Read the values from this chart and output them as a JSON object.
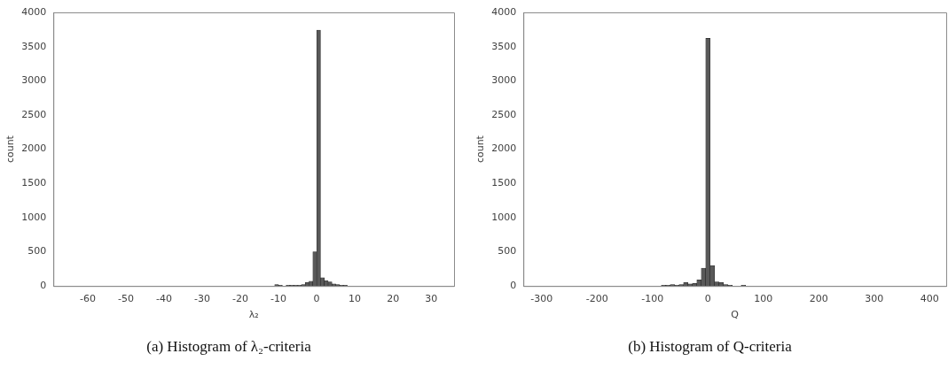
{
  "chart_data": [
    {
      "type": "histogram",
      "title": "(a) Histogram of λ₂-criteria",
      "xlabel": "λ₂",
      "ylabel": "count",
      "color": "#595959",
      "bins": [
        -64,
        -63,
        -62,
        -61,
        -60,
        -59,
        -58,
        -57,
        -56,
        -55,
        -54,
        -53,
        -52,
        -51,
        -50,
        -49,
        -48,
        -47,
        -46,
        -45,
        -44,
        -43,
        -42,
        -41,
        -40,
        -39,
        -38,
        -37,
        -36,
        -35,
        -34,
        -33,
        -32,
        -31,
        -30,
        -29,
        -28,
        -27,
        -26,
        -25,
        -24,
        -23,
        -22,
        -21,
        -20,
        -19,
        -18,
        -17,
        -16,
        -15,
        -14,
        -13,
        -12,
        -11,
        -10,
        -9,
        -8,
        -7,
        -6,
        -5,
        -4,
        -3,
        -2,
        -1,
        0,
        1,
        2,
        3,
        4,
        5,
        6,
        7,
        8,
        9,
        10,
        11,
        12,
        13,
        14,
        15,
        16,
        17,
        18,
        19,
        20,
        21,
        22,
        23,
        24,
        25,
        26,
        27,
        28,
        29,
        30,
        31,
        32
      ],
      "values": [
        0,
        0,
        0,
        0,
        0,
        0,
        0,
        0,
        0,
        0,
        0,
        0,
        0,
        0,
        0,
        0,
        0,
        0,
        0,
        0,
        0,
        0,
        0,
        0,
        0,
        0,
        0,
        0,
        0,
        0,
        0,
        0,
        0,
        0,
        0,
        0,
        0,
        0,
        0,
        0,
        0,
        0,
        0,
        0,
        0,
        0,
        0,
        0,
        0,
        0,
        0,
        0,
        0,
        20,
        10,
        0,
        10,
        10,
        10,
        10,
        20,
        50,
        70,
        500,
        3740,
        120,
        80,
        60,
        30,
        20,
        10,
        10,
        0,
        0,
        0,
        0,
        0,
        0,
        0,
        0,
        0,
        0,
        0,
        0,
        0,
        0,
        0,
        0,
        0,
        0,
        0,
        0,
        0,
        0,
        0,
        0
      ],
      "xlim": [
        -69,
        36
      ],
      "xticks": [
        -60,
        -50,
        -40,
        -30,
        -20,
        -10,
        0,
        10,
        20,
        30
      ],
      "ylim": [
        0,
        4000
      ],
      "yticks": [
        0,
        500,
        1000,
        1500,
        2000,
        2500,
        3000,
        3500,
        4000
      ]
    },
    {
      "type": "histogram",
      "title": "(b) Histogram of Q-criteria",
      "xlabel": "Q",
      "ylabel": "count",
      "color": "#595959",
      "bins": [
        -300,
        -292,
        -284,
        -276,
        -268,
        -260,
        -252,
        -244,
        -236,
        -228,
        -220,
        -212,
        -204,
        -196,
        -188,
        -180,
        -172,
        -164,
        -156,
        -148,
        -140,
        -132,
        -124,
        -116,
        -108,
        -100,
        -92,
        -84,
        -76,
        -68,
        -60,
        -52,
        -44,
        -36,
        -28,
        -20,
        -12,
        -4,
        4,
        12,
        20,
        28,
        36,
        44,
        52,
        60,
        68,
        76,
        84,
        92,
        100,
        108,
        116,
        124,
        132,
        140,
        148,
        156,
        164,
        172,
        180,
        188,
        196,
        204,
        212,
        220,
        228,
        236,
        244,
        252,
        260,
        268,
        276,
        284,
        292,
        300,
        308,
        316,
        324,
        332,
        340,
        348,
        356,
        364,
        372,
        380,
        388,
        396,
        404
      ],
      "values": [
        0,
        0,
        0,
        0,
        0,
        0,
        0,
        0,
        0,
        0,
        0,
        0,
        0,
        0,
        0,
        0,
        0,
        0,
        0,
        0,
        0,
        0,
        0,
        0,
        0,
        0,
        0,
        10,
        10,
        20,
        10,
        20,
        50,
        30,
        40,
        90,
        260,
        3620,
        300,
        60,
        50,
        20,
        10,
        0,
        0,
        10,
        0,
        0,
        0,
        0,
        0,
        0,
        0,
        0,
        0,
        0,
        0,
        0,
        0,
        0,
        0,
        0,
        0,
        0,
        0,
        0,
        0,
        0,
        0,
        0,
        0,
        0,
        0,
        0,
        0,
        0,
        0,
        0,
        0,
        0,
        0,
        0,
        0,
        0,
        0,
        0,
        0,
        0
      ],
      "xlim": [
        -333,
        430
      ],
      "xticks": [
        -300,
        -200,
        -100,
        0,
        100,
        200,
        300,
        400
      ],
      "ylim": [
        0,
        4000
      ],
      "yticks": [
        0,
        500,
        1000,
        1500,
        2000,
        2500,
        3000,
        3500,
        4000
      ]
    }
  ]
}
